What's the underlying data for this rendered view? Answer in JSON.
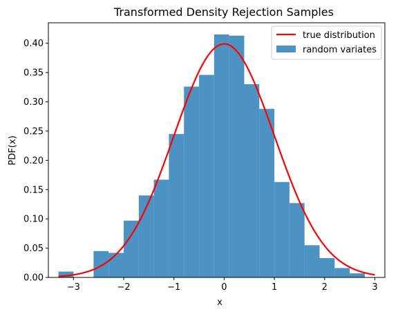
{
  "chart_data": {
    "type": "bar",
    "title": "Transformed Density Rejection Samples",
    "xlabel": "x",
    "ylabel": "PDF(x)",
    "xlim": [
      -3.5,
      3.2
    ],
    "ylim": [
      0.0,
      0.435
    ],
    "xticks": [
      -3,
      -2,
      -1,
      0,
      1,
      2,
      3
    ],
    "xtick_labels": [
      "−3",
      "−2",
      "−1",
      "0",
      "1",
      "2",
      "3"
    ],
    "yticks": [
      0.0,
      0.05,
      0.1,
      0.15,
      0.2,
      0.25,
      0.3,
      0.35,
      0.4
    ],
    "ytick_labels": [
      "0.00",
      "0.05",
      "0.10",
      "0.15",
      "0.20",
      "0.25",
      "0.30",
      "0.35",
      "0.40"
    ],
    "grid": false,
    "legend_position": "top-right",
    "histogram": {
      "name": "random variates",
      "color": "#1f77b4",
      "alpha": 0.8,
      "bin_edges": [
        -3.3,
        -3.0,
        -2.6,
        -2.3,
        -2.0,
        -1.7,
        -1.4,
        -1.1,
        -0.8,
        -0.5,
        -0.2,
        0.1,
        0.4,
        0.7,
        1.0,
        1.3,
        1.6,
        1.9,
        2.2,
        2.5,
        2.8,
        3.1
      ],
      "values": [
        0.01,
        0.0,
        0.045,
        0.042,
        0.097,
        0.14,
        0.167,
        0.245,
        0.326,
        0.346,
        0.415,
        0.413,
        0.33,
        0.288,
        0.163,
        0.127,
        0.055,
        0.033,
        0.016,
        0.007,
        0.0
      ]
    },
    "curve": {
      "name": "true distribution",
      "color": "#ff0000",
      "x_range": [
        -3.3,
        3.0
      ],
      "distribution": "standard normal pdf"
    }
  }
}
